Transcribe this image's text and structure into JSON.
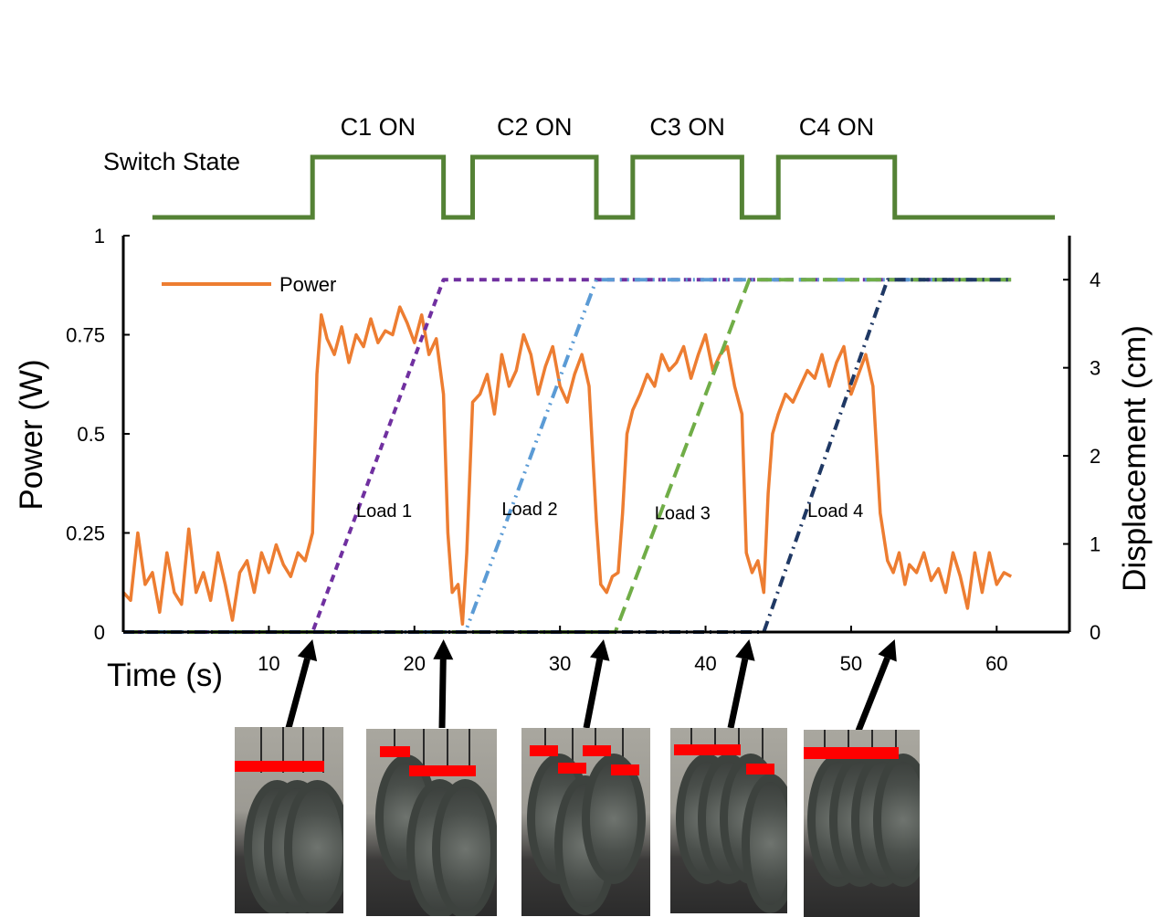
{
  "chart_data": {
    "type": "line",
    "xlabel": "Time (s)",
    "ylabel": "Power (W)",
    "y2label": "Displacement (cm)",
    "xlim": [
      0,
      65
    ],
    "ylim": [
      0,
      1
    ],
    "y2lim": [
      0,
      4.5
    ],
    "xticks": [
      10,
      20,
      30,
      40,
      50,
      60
    ],
    "yticks": [
      {
        "v": 0,
        "label": "0"
      },
      {
        "v": 0.25,
        "label": "0.25"
      },
      {
        "v": 0.5,
        "label": "0.5"
      },
      {
        "v": 0.75,
        "label": "0.75"
      },
      {
        "v": 1,
        "label": "1"
      }
    ],
    "y2ticks": [
      0,
      1,
      2,
      3,
      4
    ],
    "legend": {
      "label": "Power",
      "placement": "top-left"
    },
    "switch_state": {
      "label": "Switch State",
      "on_labels": [
        "C1 ON",
        "C2 ON",
        "C3 ON",
        "C4 ON"
      ],
      "intervals": [
        [
          13,
          22
        ],
        [
          24,
          32.5
        ],
        [
          35,
          42.5
        ],
        [
          45,
          53
        ]
      ],
      "x_start": 2,
      "x_end": 64
    },
    "annotations": [
      "Load 1",
      "Load 2",
      "Load 3",
      "Load 4"
    ],
    "series": [
      {
        "name": "Power",
        "axis": "left",
        "color": "#ed7d31",
        "x": [
          0,
          0.5,
          1,
          1.5,
          2,
          2.5,
          3,
          3.5,
          4,
          4.5,
          5,
          5.5,
          6,
          6.5,
          7,
          7.5,
          8,
          8.5,
          9,
          9.5,
          10,
          10.5,
          11,
          11.5,
          12,
          12.5,
          13,
          13.3,
          13.6,
          14,
          14.5,
          15,
          15.5,
          16,
          16.5,
          17,
          17.5,
          18,
          18.5,
          19,
          19.5,
          20,
          20.5,
          21,
          21.5,
          22,
          22.3,
          22.6,
          23,
          23.3,
          23.6,
          24,
          24.5,
          25,
          25.5,
          26,
          26.5,
          27,
          27.5,
          28,
          28.5,
          29,
          29.5,
          30,
          30.5,
          31,
          31.5,
          32,
          32.5,
          32.8,
          33.2,
          33.6,
          34,
          34.3,
          34.6,
          35,
          35.5,
          36,
          36.5,
          37,
          37.5,
          38,
          38.5,
          39,
          39.5,
          40,
          40.5,
          41,
          41.5,
          42,
          42.5,
          42.8,
          43.2,
          43.6,
          44,
          44.3,
          44.6,
          45,
          45.5,
          46,
          46.5,
          47,
          47.5,
          48,
          48.5,
          49,
          49.5,
          50,
          50.5,
          51,
          51.5,
          52,
          52.5,
          52.9,
          53.3,
          53.7,
          54,
          54.5,
          55,
          55.5,
          56,
          56.5,
          57,
          57.5,
          58,
          58.5,
          59,
          59.5,
          60,
          60.5,
          61
        ],
        "values": [
          0.1,
          0.08,
          0.25,
          0.12,
          0.15,
          0.05,
          0.2,
          0.1,
          0.07,
          0.26,
          0.1,
          0.15,
          0.08,
          0.2,
          0.12,
          0.03,
          0.15,
          0.18,
          0.1,
          0.2,
          0.15,
          0.22,
          0.17,
          0.14,
          0.2,
          0.18,
          0.25,
          0.65,
          0.8,
          0.74,
          0.7,
          0.77,
          0.68,
          0.75,
          0.72,
          0.79,
          0.73,
          0.76,
          0.75,
          0.82,
          0.78,
          0.73,
          0.8,
          0.7,
          0.74,
          0.6,
          0.25,
          0.1,
          0.12,
          0.02,
          0.2,
          0.58,
          0.6,
          0.65,
          0.55,
          0.7,
          0.62,
          0.66,
          0.75,
          0.7,
          0.6,
          0.67,
          0.72,
          0.62,
          0.58,
          0.65,
          0.7,
          0.62,
          0.28,
          0.12,
          0.1,
          0.14,
          0.15,
          0.3,
          0.5,
          0.56,
          0.6,
          0.65,
          0.62,
          0.7,
          0.66,
          0.68,
          0.72,
          0.64,
          0.7,
          0.75,
          0.66,
          0.7,
          0.72,
          0.62,
          0.55,
          0.2,
          0.15,
          0.18,
          0.1,
          0.35,
          0.5,
          0.55,
          0.6,
          0.58,
          0.62,
          0.66,
          0.64,
          0.7,
          0.62,
          0.68,
          0.72,
          0.6,
          0.65,
          0.7,
          0.62,
          0.3,
          0.18,
          0.15,
          0.2,
          0.12,
          0.17,
          0.15,
          0.2,
          0.13,
          0.16,
          0.1,
          0.2,
          0.14,
          0.06,
          0.2,
          0.1,
          0.2,
          0.12,
          0.15,
          0.14
        ]
      },
      {
        "name": "",
        "label_ref": "Load 1",
        "axis": "right",
        "color": "#7030a0",
        "dash": "8,6",
        "x": [
          0,
          13,
          22,
          61
        ],
        "values": [
          0,
          0,
          4,
          4
        ]
      },
      {
        "name": "",
        "label_ref": "Load 2",
        "axis": "right",
        "color": "#5b9bd5",
        "dash": "14,6,2,6,2,6",
        "x": [
          0,
          23.5,
          32.5,
          61
        ],
        "values": [
          0,
          0,
          4,
          4
        ]
      },
      {
        "name": "",
        "label_ref": "Load 3",
        "axis": "right",
        "color": "#70ad47",
        "dash": "16,8",
        "x": [
          0,
          33.8,
          43,
          61
        ],
        "values": [
          0,
          0,
          4,
          4
        ]
      },
      {
        "name": "",
        "label_ref": "Load 4",
        "axis": "right",
        "color": "#1f3864",
        "dash": "12,6,2,6",
        "x": [
          0,
          44,
          52.5,
          61
        ],
        "values": [
          0,
          0,
          4,
          4
        ]
      }
    ]
  },
  "colors": {
    "switch": "#548235",
    "axis": "#000000",
    "arrow": "#000000",
    "marker": "#ff0000"
  },
  "photos": [
    {
      "name": "photo-state-1",
      "arrow_time": 13
    },
    {
      "name": "photo-state-2",
      "arrow_time": 22
    },
    {
      "name": "photo-state-3",
      "arrow_time": 33
    },
    {
      "name": "photo-state-4",
      "arrow_time": 43
    },
    {
      "name": "photo-state-5",
      "arrow_time": 53
    }
  ]
}
